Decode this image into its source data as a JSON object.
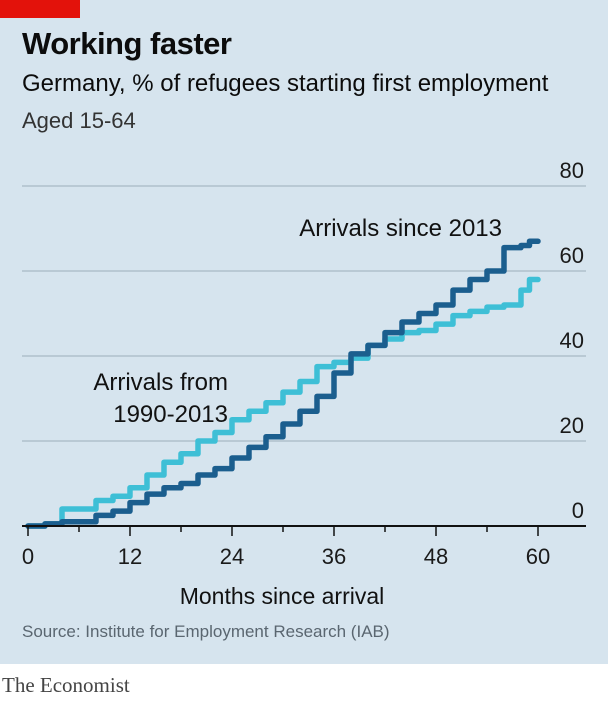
{
  "header": {
    "title": "Working faster",
    "subtitle": "Germany, % of refugees starting first employment",
    "subtitle2": "Aged 15-64"
  },
  "footer": {
    "source": "Source: Institute for Employment Research (IAB)",
    "brand": "The Economist"
  },
  "colors": {
    "background": "#d6e4ee",
    "accent_red": "#e3120b",
    "series_since_2013": "#1b5e8e",
    "series_1990_2013": "#3ebfd6",
    "gridline": "#a8b9c4"
  },
  "chart_data": {
    "type": "line",
    "title": "Working faster",
    "subtitle": "Germany, % of refugees starting first employment",
    "note": "Aged 15-64",
    "xlabel": "Months since arrival",
    "ylabel": "",
    "xlim": [
      0,
      66
    ],
    "ylim": [
      0,
      80
    ],
    "xticks": [
      0,
      12,
      24,
      36,
      48,
      60
    ],
    "yticks": [
      0,
      20,
      40,
      60,
      80
    ],
    "grid": true,
    "y_axis_side": "right",
    "series": [
      {
        "name": "Arrivals since 2013",
        "label_text": "Arrivals since 2013",
        "x": [
          0,
          2,
          4,
          6,
          8,
          10,
          12,
          14,
          16,
          18,
          20,
          22,
          24,
          26,
          28,
          30,
          32,
          34,
          36,
          38,
          40,
          42,
          44,
          46,
          48,
          50,
          52,
          54,
          56,
          58,
          59,
          60
        ],
        "y": [
          0,
          0.5,
          1,
          1,
          2.5,
          3.5,
          5.5,
          7.5,
          9,
          10,
          12,
          13.5,
          16,
          18.5,
          21,
          24,
          27,
          30.5,
          36,
          40.5,
          42.5,
          45.5,
          48,
          50,
          52,
          55.5,
          58,
          60,
          65.5,
          66,
          67,
          67
        ]
      },
      {
        "name": "Arrivals from 1990-2013",
        "label_text": [
          "Arrivals from",
          "1990-2013"
        ],
        "x": [
          0,
          2,
          4,
          6,
          8,
          10,
          12,
          14,
          16,
          18,
          20,
          22,
          24,
          26,
          28,
          30,
          32,
          34,
          36,
          38,
          40,
          42,
          44,
          46,
          48,
          50,
          52,
          54,
          56,
          58,
          59,
          60
        ],
        "y": [
          0,
          0.5,
          4,
          4,
          6,
          7,
          9,
          12,
          15,
          17,
          20,
          22,
          25,
          27,
          29,
          31.5,
          34,
          37.5,
          38.5,
          39.5,
          42.5,
          44,
          45.5,
          46,
          47.5,
          49.5,
          50.5,
          51.5,
          52,
          55.5,
          58,
          58
        ]
      }
    ]
  }
}
